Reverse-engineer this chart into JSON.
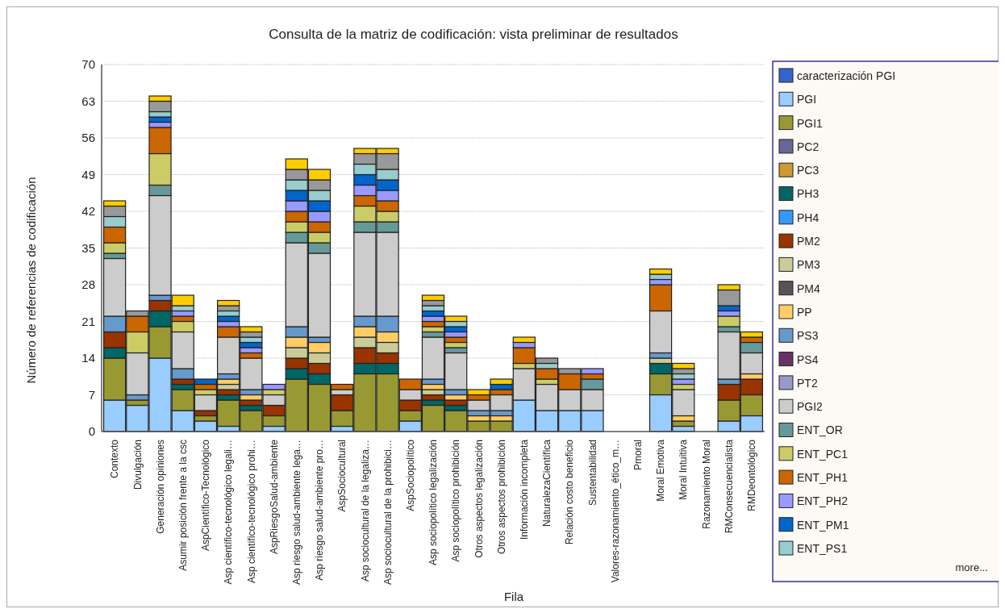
{
  "chart_data": {
    "type": "bar",
    "stacked": true,
    "title": "Consulta de la matriz de codificación: vista preliminar de resultados",
    "xlabel": "Fila",
    "ylabel": "Número de referencias de codificación",
    "categories": [
      "Contexto",
      "Divulgación",
      "Generación opiniones",
      "Asumir  posición frente a la csc",
      "AspCientífico-Tecnológico",
      "Asp científico-tecnológico legali…",
      "Asp científico-tecnológico prohi…",
      "AspRiesgoSalud-ambiente",
      "Asp riesgo salud-ambiente lega…",
      "Asp riesgo salud-ambiente pro…",
      "AspSociocultural",
      "Asp sociocultural de la legaliza…",
      "Asp sociocultural de la prohibici…",
      "AspSociopolítico",
      "Asp sociopolítico legalización",
      "Asp sociopolítico prohibición",
      "Otros aspectos legalización",
      "Otros aspectos prohibición",
      "Información incompleta",
      "NaturalezaCientífica",
      "Relación costo beneficio",
      "Sustentabilidad",
      "Valores-razonamiento_ético_m…",
      "Pmoral",
      "Moral Emotiva",
      "Moral Intuitiva",
      "Razonamiento Moral",
      "RMConsecuencialista",
      "RMDeontológico"
    ],
    "ylim": [
      0,
      70
    ],
    "yticks": [
      0,
      7,
      14,
      21,
      28,
      35,
      42,
      49,
      56,
      63,
      70
    ],
    "grid": "y",
    "legend": "right",
    "annotations": [
      "more..."
    ],
    "series": [
      {
        "name": "caracterización PGI",
        "color": "#3366cc",
        "values": [
          0,
          0,
          0,
          0,
          0,
          0,
          0,
          0,
          0,
          0,
          0,
          0,
          0,
          0,
          0,
          0,
          0,
          0,
          0,
          0,
          0,
          0,
          0,
          0,
          0,
          0,
          0,
          0,
          0
        ]
      },
      {
        "name": "PGI",
        "color": "#99ccff",
        "values": [
          6,
          5,
          14,
          4,
          2,
          1,
          0,
          1,
          0,
          0,
          1,
          0,
          0,
          2,
          0,
          0,
          0,
          0,
          6,
          4,
          4,
          4,
          0,
          0,
          7,
          1,
          0,
          2,
          3
        ]
      },
      {
        "name": "PGI1",
        "color": "#999933",
        "values": [
          8,
          1,
          6,
          4,
          1,
          5,
          4,
          2,
          10,
          9,
          3,
          11,
          11,
          2,
          5,
          4,
          2,
          2,
          0,
          0,
          0,
          0,
          0,
          0,
          4,
          1,
          0,
          4,
          4
        ]
      },
      {
        "name": "PC2",
        "color": "#666699",
        "values": [
          0,
          0,
          0,
          0,
          0,
          0,
          0,
          0,
          0,
          0,
          0,
          0,
          0,
          0,
          0,
          0,
          0,
          0,
          0,
          0,
          0,
          0,
          0,
          0,
          0,
          0,
          0,
          0,
          0
        ]
      },
      {
        "name": "PC3",
        "color": "#cc9933",
        "values": [
          0,
          0,
          0,
          0,
          0,
          0,
          0,
          0,
          0,
          0,
          0,
          0,
          0,
          0,
          0,
          0,
          0,
          0,
          0,
          0,
          0,
          0,
          0,
          0,
          0,
          0,
          0,
          0,
          0
        ]
      },
      {
        "name": "PH3",
        "color": "#006666",
        "values": [
          2,
          0,
          3,
          1,
          0,
          1,
          1,
          0,
          2,
          2,
          0,
          2,
          2,
          0,
          1,
          1,
          0,
          0,
          0,
          0,
          0,
          0,
          0,
          0,
          2,
          0,
          0,
          0,
          0
        ]
      },
      {
        "name": "PH4",
        "color": "#3399ff",
        "values": [
          0,
          0,
          0,
          0,
          0,
          0,
          0,
          0,
          0,
          0,
          0,
          0,
          0,
          0,
          0,
          0,
          0,
          0,
          0,
          0,
          0,
          0,
          0,
          0,
          0,
          0,
          0,
          0,
          0
        ]
      },
      {
        "name": "PM2",
        "color": "#993300",
        "values": [
          3,
          0,
          2,
          1,
          1,
          1,
          1,
          2,
          2,
          2,
          3,
          3,
          2,
          2,
          1,
          1,
          0,
          0,
          0,
          0,
          0,
          0,
          0,
          0,
          0,
          0,
          0,
          3,
          3
        ]
      },
      {
        "name": "PM3",
        "color": "#cccc99",
        "values": [
          0,
          0,
          0,
          0,
          0,
          1,
          0,
          0,
          2,
          2,
          0,
          2,
          2,
          0,
          1,
          0,
          0,
          0,
          0,
          0,
          0,
          0,
          0,
          0,
          1,
          0,
          0,
          0,
          0
        ]
      },
      {
        "name": "PM4",
        "color": "#555555",
        "values": [
          0,
          0,
          0,
          0,
          0,
          0,
          0,
          0,
          0,
          0,
          0,
          0,
          0,
          0,
          0,
          0,
          0,
          0,
          0,
          0,
          0,
          0,
          0,
          0,
          0,
          0,
          0,
          0,
          0
        ]
      },
      {
        "name": "PP",
        "color": "#ffcc66",
        "values": [
          0,
          0,
          0,
          0,
          0,
          1,
          1,
          0,
          2,
          2,
          0,
          2,
          2,
          0,
          1,
          1,
          1,
          1,
          0,
          0,
          0,
          0,
          0,
          0,
          0,
          1,
          0,
          0,
          1
        ]
      },
      {
        "name": "PS3",
        "color": "#6699cc",
        "values": [
          3,
          1,
          1,
          2,
          0,
          1,
          1,
          0,
          2,
          1,
          0,
          2,
          3,
          0,
          1,
          1,
          1,
          1,
          0,
          0,
          0,
          0,
          0,
          0,
          1,
          0,
          0,
          1,
          0
        ]
      },
      {
        "name": "PS4",
        "color": "#663366",
        "values": [
          0,
          0,
          0,
          0,
          0,
          0,
          0,
          0,
          0,
          0,
          0,
          0,
          0,
          0,
          0,
          0,
          0,
          0,
          0,
          0,
          0,
          0,
          0,
          0,
          0,
          0,
          0,
          0,
          0
        ]
      },
      {
        "name": "PT2",
        "color": "#9999cc",
        "values": [
          0,
          0,
          0,
          0,
          0,
          0,
          0,
          0,
          0,
          0,
          0,
          0,
          0,
          0,
          0,
          0,
          0,
          0,
          0,
          0,
          0,
          0,
          0,
          0,
          0,
          0,
          0,
          0,
          0
        ]
      },
      {
        "name": "PGI2",
        "color": "#cccccc",
        "values": [
          11,
          8,
          19,
          7,
          3,
          7,
          6,
          2,
          16,
          16,
          1,
          16,
          16,
          2,
          8,
          7,
          2,
          3,
          6,
          5,
          4,
          4,
          0,
          0,
          8,
          5,
          0,
          9,
          4
        ]
      },
      {
        "name": "ENT_OR",
        "color": "#669999",
        "values": [
          1,
          0,
          2,
          0,
          0,
          0,
          0,
          0,
          2,
          2,
          0,
          2,
          2,
          0,
          1,
          1,
          0,
          0,
          0,
          0,
          0,
          2,
          0,
          0,
          0,
          0,
          0,
          1,
          2
        ]
      },
      {
        "name": "ENT_PC1",
        "color": "#cccc66",
        "values": [
          2,
          4,
          6,
          2,
          1,
          0,
          0,
          1,
          2,
          2,
          0,
          3,
          2,
          0,
          1,
          1,
          0,
          0,
          1,
          1,
          0,
          0,
          0,
          0,
          0,
          1,
          0,
          2,
          0
        ]
      },
      {
        "name": "ENT_PH1",
        "color": "#cc6600",
        "values": [
          3,
          3,
          5,
          1,
          1,
          2,
          1,
          0,
          2,
          2,
          1,
          2,
          2,
          2,
          1,
          1,
          1,
          1,
          3,
          2,
          3,
          1,
          0,
          0,
          5,
          0,
          0,
          0,
          1
        ]
      },
      {
        "name": "ENT_PH2",
        "color": "#9999ff",
        "values": [
          0,
          0,
          1,
          1,
          0,
          1,
          1,
          1,
          2,
          2,
          0,
          2,
          2,
          0,
          1,
          1,
          0,
          0,
          1,
          0,
          0,
          1,
          0,
          0,
          1,
          1,
          0,
          1,
          0
        ]
      },
      {
        "name": "ENT_PM1",
        "color": "#0066cc",
        "values": [
          0,
          0,
          1,
          0,
          1,
          1,
          1,
          0,
          2,
          2,
          0,
          2,
          2,
          0,
          1,
          1,
          0,
          1,
          0,
          0,
          0,
          0,
          0,
          0,
          0,
          0,
          0,
          1,
          0
        ]
      },
      {
        "name": "ENT_PS1",
        "color": "#99cccc",
        "values": [
          2,
          0,
          1,
          1,
          0,
          1,
          1,
          0,
          2,
          2,
          0,
          2,
          2,
          0,
          1,
          1,
          0,
          0,
          0,
          1,
          0,
          0,
          0,
          0,
          1,
          1,
          0,
          0,
          0
        ]
      },
      {
        "color": "#999999",
        "values": [
          2,
          1,
          2,
          0,
          0,
          1,
          1,
          0,
          2,
          2,
          0,
          2,
          3,
          0,
          1,
          0,
          0,
          0,
          0,
          1,
          1,
          0,
          0,
          0,
          0,
          1,
          0,
          3,
          0
        ]
      },
      {
        "color": "#ffcc00",
        "values": [
          1,
          0,
          1,
          2,
          0,
          1,
          1,
          0,
          2,
          2,
          0,
          1,
          1,
          0,
          1,
          1,
          1,
          1,
          1,
          0,
          0,
          0,
          0,
          0,
          1,
          1,
          0,
          1,
          1
        ]
      }
    ]
  }
}
